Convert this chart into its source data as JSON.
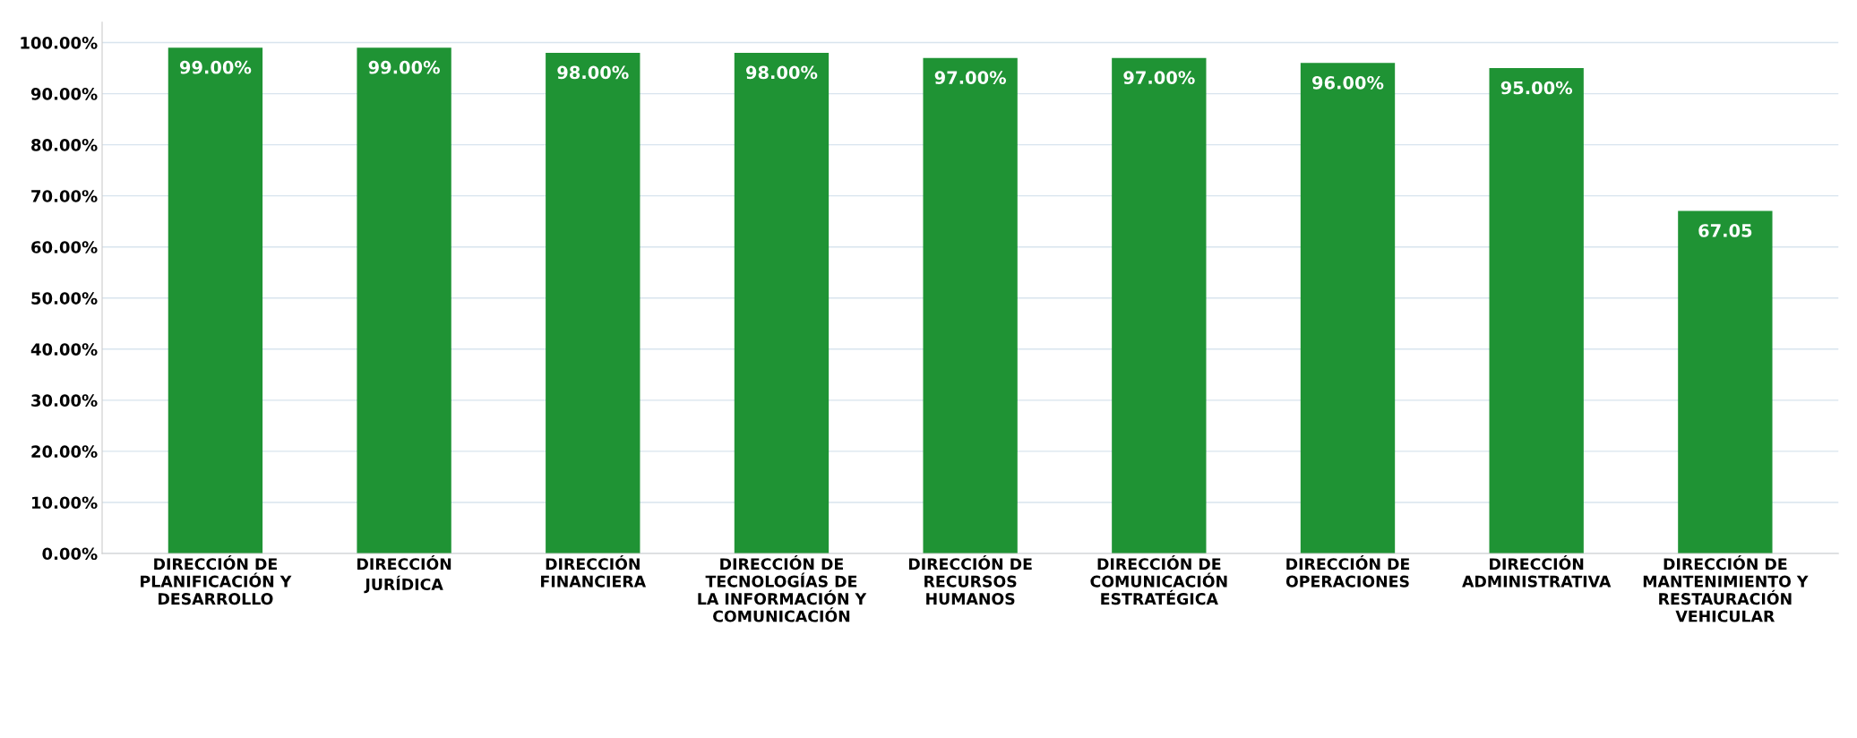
{
  "chart_data": {
    "type": "bar",
    "categories": [
      "DIRECCIÓN DE\nPLANIFICACIÓN Y\nDESARROLLO",
      "DIRECCIÓN\nJURÍDICA",
      "DIRECCIÓN\nFINANCIERA",
      "DIRECCIÓN DE\nTECNOLOGÍAS DE\nLA INFORMACIÓN Y\nCOMUNICACIÓN",
      "DIRECCIÓN DE\nRECURSOS\nHUMANOS",
      "DIRECCIÓN DE\nCOMUNICACIÓN\nESTRATÉGICA",
      "DIRECCIÓN DE\nOPERACIONES",
      "DIRECCIÓN\nADMINISTRATIVA",
      "DIRECCIÓN DE\nMANTENIMIENTO Y\nRESTAURACIÓN\nVEHICULAR"
    ],
    "values": [
      99,
      99,
      98,
      98,
      97,
      97,
      96,
      95,
      67.05
    ],
    "value_labels": [
      "99.00%",
      "99.00%",
      "98.00%",
      "98.00%",
      "97.00%",
      "97.00%",
      "96.00%",
      "95.00%",
      "67.05"
    ],
    "color": "#1f9334",
    "ylim": [
      0,
      104
    ],
    "yticks": [
      {
        "value": 0,
        "label": "0.00%"
      },
      {
        "value": 10,
        "label": "10.00%"
      },
      {
        "value": 20,
        "label": "20.00%"
      },
      {
        "value": 30,
        "label": "30.00%"
      },
      {
        "value": 40,
        "label": "40.00%"
      },
      {
        "value": 50,
        "label": "50.00%"
      },
      {
        "value": 60,
        "label": "60.00%"
      },
      {
        "value": 70,
        "label": "70.00%"
      },
      {
        "value": 80,
        "label": "80.00%"
      },
      {
        "value": 90,
        "label": "90.00%"
      },
      {
        "value": 100,
        "label": "100.00%"
      }
    ],
    "grid": "y"
  }
}
